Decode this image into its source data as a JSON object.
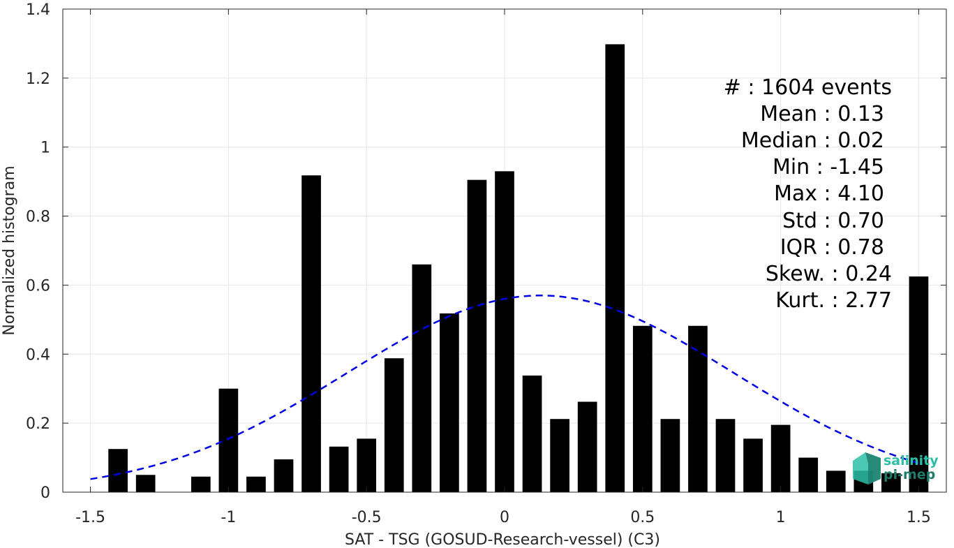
{
  "chart_data": {
    "type": "bar",
    "xlabel": "SAT - TSG (GOSUD-Research-vessel) (C3)",
    "ylabel": "Normalized histogram",
    "xlim": [
      -1.6,
      1.6
    ],
    "ylim": [
      0,
      1.4
    ],
    "grid": true,
    "x_ticks": [
      -1.5,
      -1,
      -0.5,
      0,
      0.5,
      1,
      1.5
    ],
    "x_tick_labels": [
      "-1.5",
      "-1",
      "-0.5",
      "0",
      "0.5",
      "1",
      "1.5"
    ],
    "y_ticks": [
      0,
      0.2,
      0.4,
      0.6,
      0.8,
      1,
      1.2,
      1.4
    ],
    "y_tick_labels": [
      "0",
      "0.2",
      "0.4",
      "0.6",
      "0.8",
      "1",
      "1.2",
      "1.4"
    ],
    "bar_width": 0.07,
    "bin_centers": [
      -1.4,
      -1.3,
      -1.2,
      -1.1,
      -1.0,
      -0.9,
      -0.8,
      -0.7,
      -0.6,
      -0.5,
      -0.4,
      -0.3,
      -0.2,
      -0.1,
      0.0,
      0.1,
      0.2,
      0.3,
      0.4,
      0.5,
      0.6,
      0.7,
      0.8,
      0.9,
      1.0,
      1.1,
      1.2,
      1.3,
      1.4,
      1.5
    ],
    "values": [
      0.125,
      0.05,
      0,
      0.045,
      0.3,
      0.045,
      0.095,
      0.918,
      0.132,
      0.155,
      0.388,
      0.66,
      0.518,
      0.905,
      0.93,
      0.338,
      0.212,
      0.262,
      1.298,
      0.482,
      0.212,
      0.482,
      0.212,
      0.155,
      0.195,
      0.1,
      0.062,
      0.062,
      0.055,
      0.625
    ],
    "bar_color": "#000000",
    "fit_curve": {
      "style": "dashed",
      "color": "#0000e6",
      "mean": 0.13,
      "std": 0.7,
      "x_range": [
        -1.5,
        1.5
      ]
    }
  },
  "stats": {
    "lines": [
      {
        "label": "#  : 1604 events"
      },
      {
        "label": "Mean : 0.13"
      },
      {
        "label": "Median : 0.02"
      },
      {
        "label": "Min : -1.45"
      },
      {
        "label": "Max : 4.10"
      },
      {
        "label": "Std : 0.70"
      },
      {
        "label": "IQR : 0.78"
      },
      {
        "label": "Skew. : 0.24"
      },
      {
        "label": "Kurt. : 2.77"
      }
    ]
  },
  "logo": {
    "line1": "salinity",
    "line2": "pi-mep",
    "color1": "#2bbfa8",
    "color2": "#1f7a6a"
  },
  "colors": {
    "grid": "#e6e6e6",
    "axis": "#262626"
  }
}
